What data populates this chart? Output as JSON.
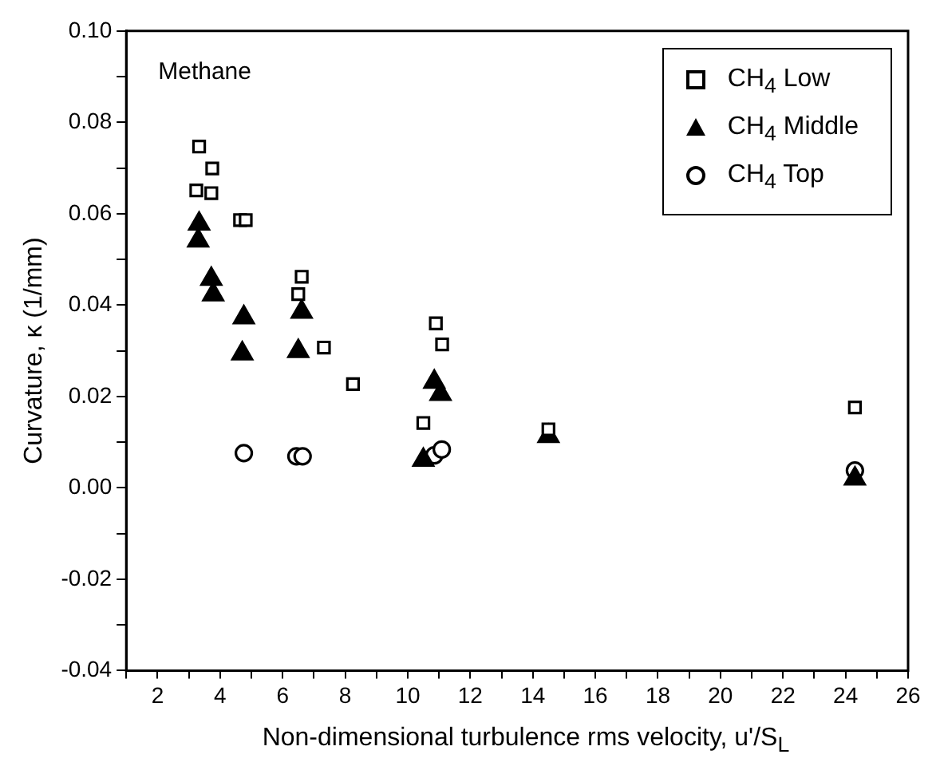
{
  "chart_data": {
    "type": "scatter",
    "xlabel": "Non-dimensional turbulence rms velocity, u'/S$_{L}$",
    "ylabel": "Curvature, κ (1/mm)",
    "annotations": [
      "Methane"
    ],
    "xlim": [
      1,
      26
    ],
    "xticks": [
      {
        "value": 1,
        "label": null
      },
      2,
      {
        "value": 3,
        "label": null
      },
      4,
      {
        "value": 5,
        "label": null
      },
      6,
      {
        "value": 7,
        "label": null
      },
      8,
      {
        "value": 9,
        "label": null
      },
      10,
      {
        "value": 11,
        "label": null
      },
      12,
      {
        "value": 13,
        "label": null
      },
      14,
      {
        "value": 15,
        "label": null
      },
      16,
      {
        "value": 17,
        "label": null
      },
      18,
      {
        "value": 19,
        "label": null
      },
      20,
      {
        "value": 21,
        "label": null
      },
      22,
      {
        "value": 23,
        "label": null
      },
      24,
      {
        "value": 25,
        "label": null
      },
      26
    ],
    "ylim": [
      -0.04,
      0.1
    ],
    "yticks": [
      {
        "value": -0.04,
        "label": "-0.04"
      },
      {
        "value": -0.03,
        "label": null
      },
      {
        "value": -0.02,
        "label": "-0.02"
      },
      {
        "value": -0.01,
        "label": null
      },
      {
        "value": 0,
        "label": "0.00"
      },
      {
        "value": 0.01,
        "label": null
      },
      {
        "value": 0.02,
        "label": "0.02"
      },
      {
        "value": 0.03,
        "label": null
      },
      {
        "value": 0.04,
        "label": "0.04"
      },
      {
        "value": 0.05,
        "label": null
      },
      {
        "value": 0.06,
        "label": "0.06"
      },
      {
        "value": 0.07,
        "label": null
      },
      {
        "value": 0.08,
        "label": "0.08"
      },
      {
        "value": 0.09,
        "label": null
      },
      {
        "value": 0.1,
        "label": "0.10"
      }
    ],
    "grid": false,
    "legend": "top right",
    "series": [
      {
        "name": "CH$_{4}$ Low",
        "color": "#000000",
        "marker": "square",
        "x": [
          3.33,
          3.75,
          3.24,
          3.72,
          4.64,
          4.82,
          6.61,
          6.5,
          7.32,
          8.25,
          10.9,
          11.1,
          10.5,
          14.5,
          24.3
        ],
        "values": [
          0.0747,
          0.0699,
          0.0651,
          0.0645,
          0.0586,
          0.0586,
          0.0462,
          0.0424,
          0.0307,
          0.0227,
          0.036,
          0.0314,
          0.0142,
          0.0128,
          0.0176
        ]
      },
      {
        "name": "CH$_{4}$ Middle",
        "color": "#000000",
        "marker": "triangle",
        "x": [
          3.33,
          3.3,
          3.72,
          3.78,
          4.76,
          4.71,
          6.61,
          6.5,
          10.85,
          11.05,
          10.5,
          14.5,
          24.3
        ],
        "values": [
          0.0578,
          0.0541,
          0.0457,
          0.0423,
          0.0373,
          0.0294,
          0.0385,
          0.0299,
          0.0232,
          0.0205,
          0.0061,
          0.0113,
          0.002
        ]
      },
      {
        "name": "CH$_{4}$ Top",
        "color": "#000000",
        "marker": "circle",
        "x": [
          4.76,
          6.44,
          6.64,
          10.85,
          11.09,
          24.3
        ],
        "values": [
          0.0076,
          0.0069,
          0.0069,
          0.0071,
          0.0084,
          0.0038
        ]
      }
    ]
  }
}
